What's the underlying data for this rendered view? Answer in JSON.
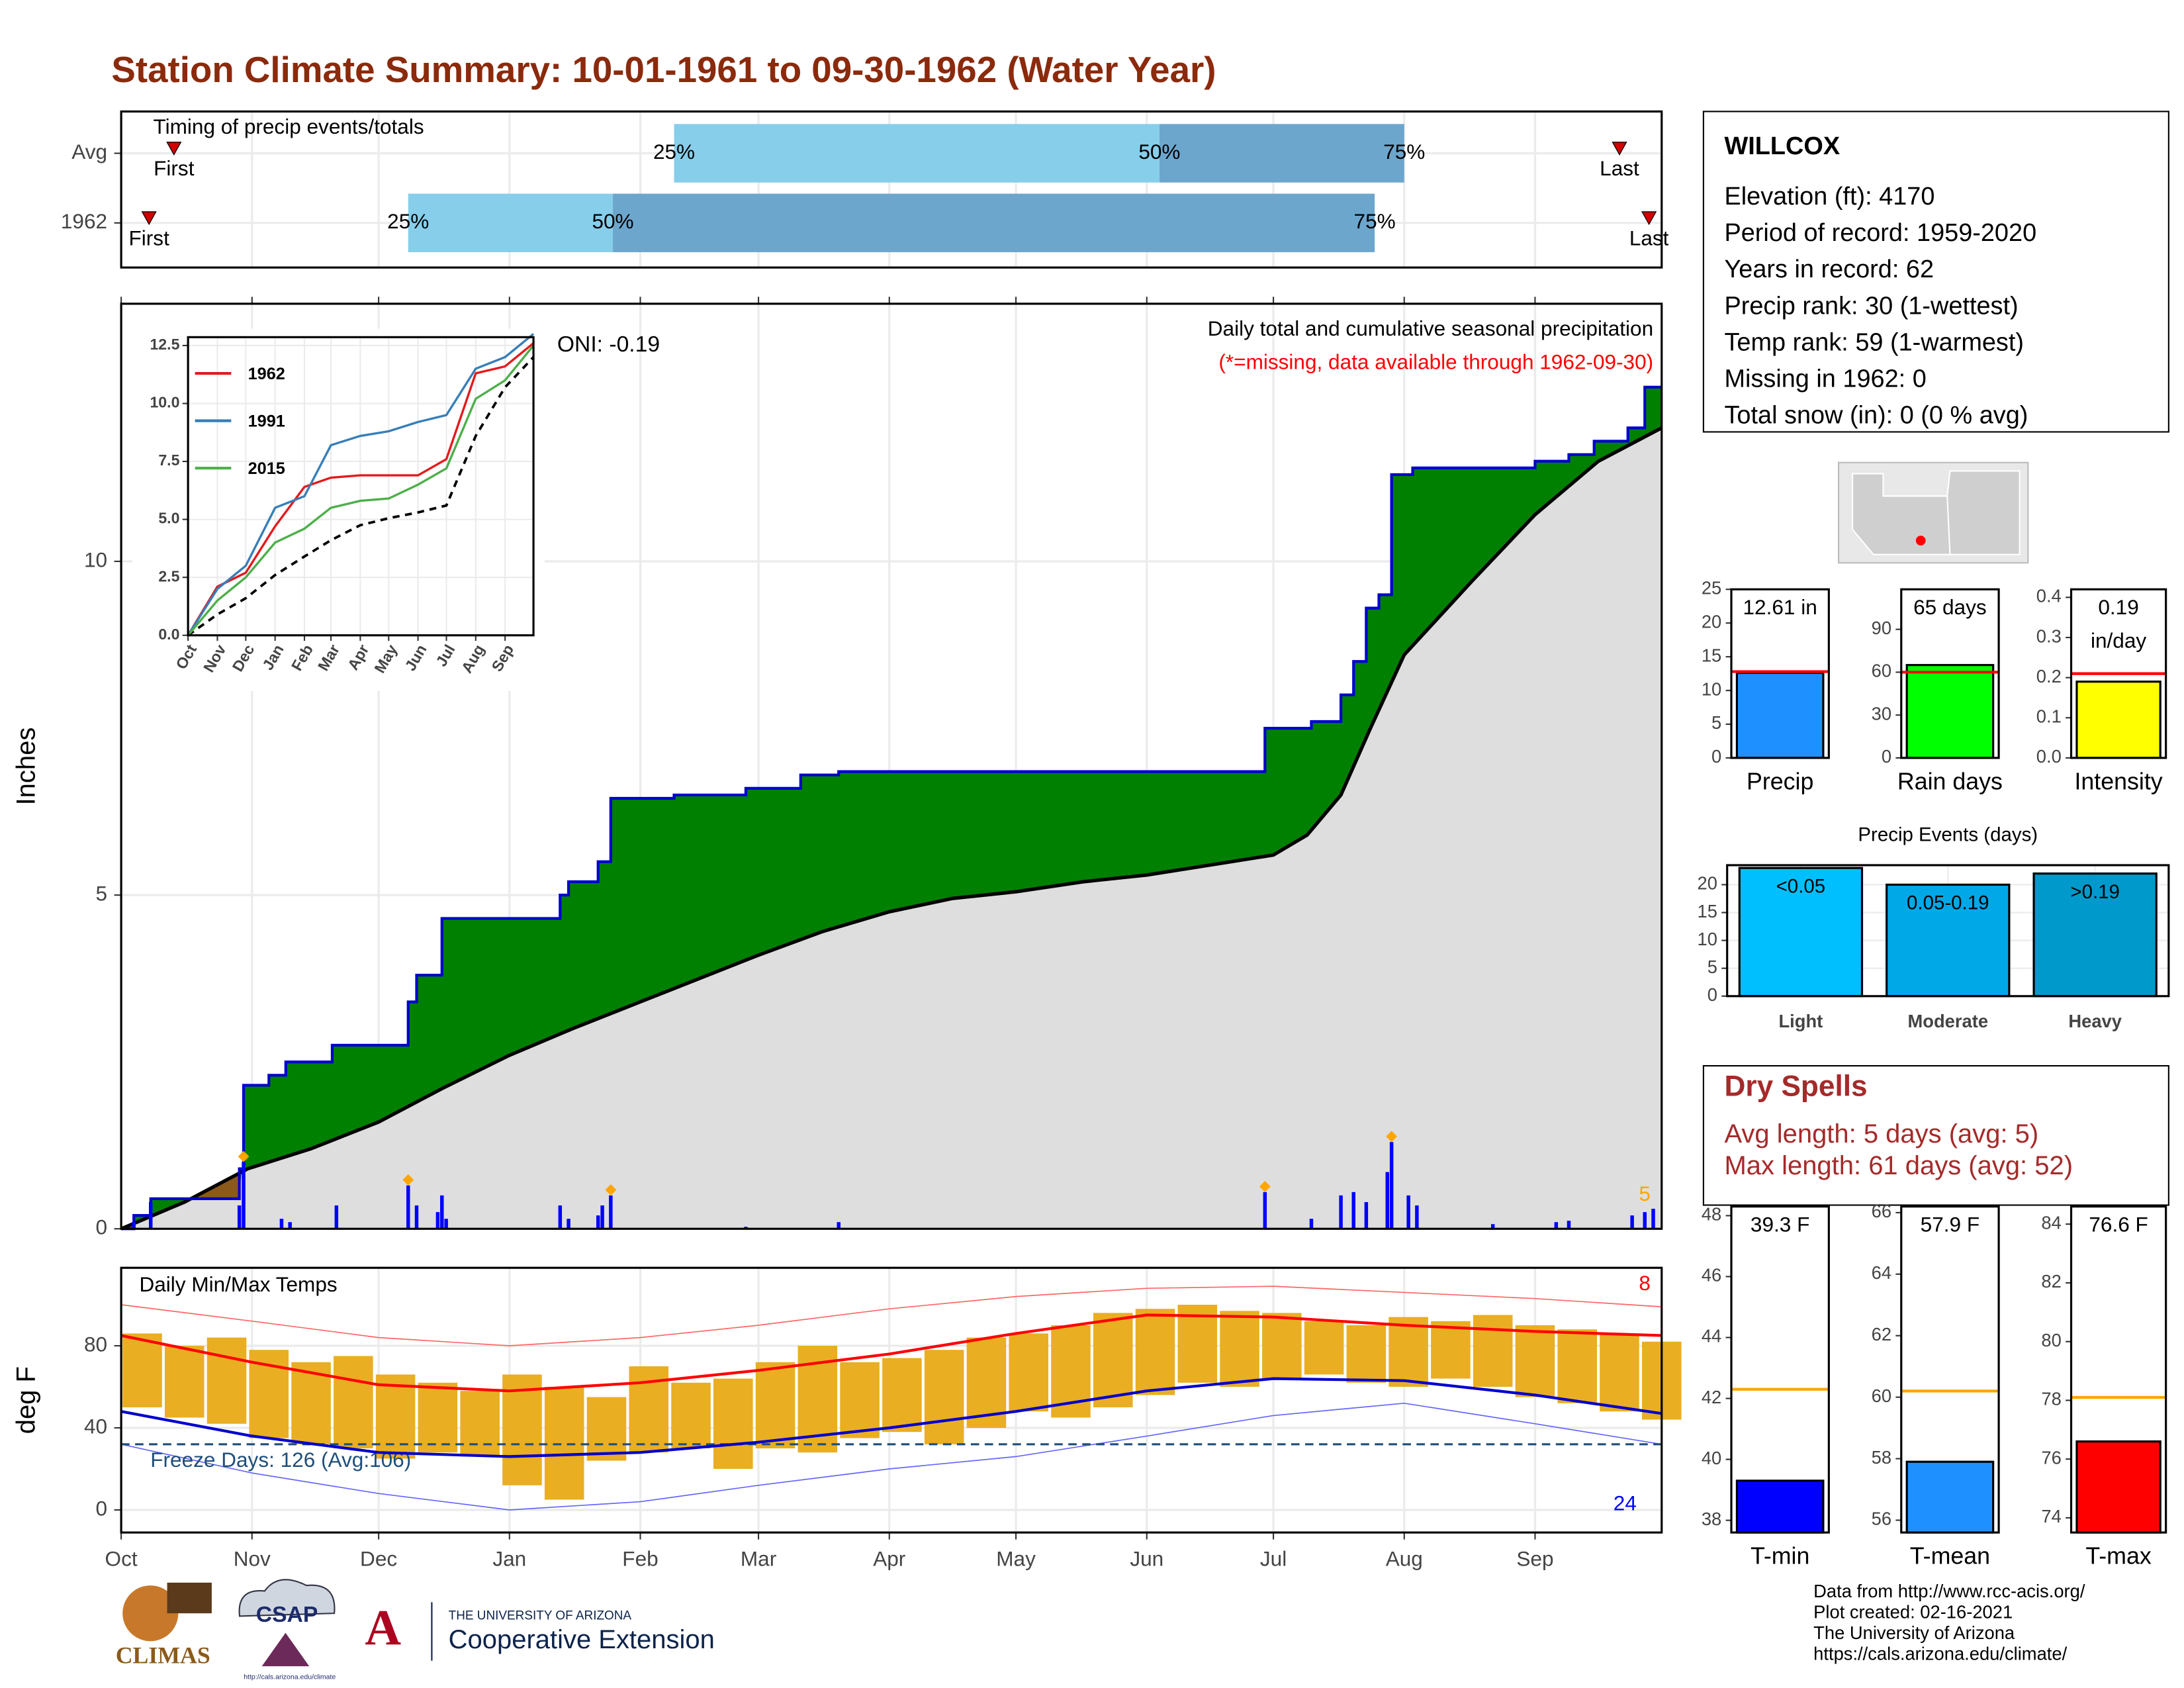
{
  "title": "Station Climate Summary: 10-01-1961 to 09-30-1962 (Water Year)",
  "chart_data": [
    {
      "type": "timing",
      "title": "Timing of precip events/totals",
      "categories": [
        "Avg",
        "1962"
      ],
      "xlim": [
        0,
        365
      ],
      "xticks": [
        0,
        31,
        61,
        92,
        123,
        151,
        182,
        212,
        243,
        273,
        304,
        335
      ],
      "markers": [
        {
          "label": "First",
          "values": [
            12.5,
            6.6
          ]
        },
        {
          "label": "Last",
          "values": [
            355,
            362
          ]
        }
      ],
      "quantiles": [
        {
          "label": "25%",
          "values": [
            131,
            68
          ]
        },
        {
          "label": "50%",
          "values": [
            246,
            116.5
          ]
        },
        {
          "label": "75%",
          "values": [
            304,
            297
          ]
        }
      ],
      "colors": [
        "#87ceeb",
        "#6ca6cd"
      ],
      "marker_color": "#d40000"
    },
    {
      "type": "cumulative",
      "y_label": "Inches",
      "oni": "ONI: -0.19",
      "subtitle": "Daily total and cumulative seasonal precipitation",
      "note": "(*=missing, data available through 1962-09-30)",
      "extreme_count": 5,
      "xlim": [
        0,
        365
      ],
      "ylim": [
        0,
        13.86
      ],
      "xticks": [
        0,
        31,
        61,
        92,
        123,
        151,
        182,
        212,
        243,
        273,
        304,
        335
      ],
      "yticks": [
        0,
        5,
        10
      ],
      "observed": {
        "color": "#0000cd",
        "fill": "#008000",
        "x": [
          0,
          3,
          3,
          7,
          7,
          28,
          28,
          29,
          29,
          35,
          35,
          39,
          39,
          50,
          50,
          68,
          68,
          70,
          70,
          76,
          76,
          104,
          104,
          106,
          106,
          113,
          113,
          116,
          116,
          131,
          131,
          148,
          148,
          161,
          161,
          170,
          170,
          271,
          271,
          282,
          282,
          289,
          289,
          292,
          292,
          295,
          295,
          298,
          298,
          301,
          301,
          306,
          306,
          335,
          335,
          343,
          343,
          349,
          349,
          357,
          357,
          361,
          361,
          365
        ],
        "values": [
          0,
          0,
          0.2,
          0.2,
          0.45,
          0.45,
          0.9,
          0.9,
          2.15,
          2.15,
          2.3,
          2.3,
          2.5,
          2.5,
          2.75,
          2.75,
          3.4,
          3.4,
          3.8,
          3.8,
          4.65,
          4.65,
          5.0,
          5.0,
          5.2,
          5.2,
          5.5,
          5.5,
          6.45,
          6.45,
          6.5,
          6.5,
          6.6,
          6.6,
          6.8,
          6.8,
          6.85,
          6.85,
          7.5,
          7.5,
          7.6,
          7.6,
          8.0,
          8.0,
          8.5,
          8.5,
          9.3,
          9.3,
          9.5,
          9.5,
          11.3,
          11.3,
          11.4,
          11.4,
          11.5,
          11.5,
          11.6,
          11.6,
          11.8,
          11.8,
          12.0,
          12.0,
          12.61,
          12.61
        ]
      },
      "average": {
        "color": "#000000",
        "fill": "#8b5a1a",
        "below_fill": "#dedede",
        "x": [
          0,
          15,
          30,
          45,
          61,
          76,
          92,
          107,
          123,
          137,
          151,
          166,
          182,
          197,
          212,
          228,
          243,
          258,
          273,
          281,
          289,
          296,
          304,
          320,
          335,
          350,
          365
        ],
        "values": [
          0,
          0.4,
          0.9,
          1.2,
          1.6,
          2.1,
          2.6,
          3.0,
          3.4,
          3.75,
          4.1,
          4.45,
          4.75,
          4.95,
          5.05,
          5.2,
          5.3,
          5.45,
          5.6,
          5.9,
          6.5,
          7.5,
          8.6,
          9.7,
          10.7,
          11.5,
          12.0
        ]
      },
      "daily": {
        "color": "#0000ff",
        "x": [
          3,
          7,
          28,
          29,
          38,
          40,
          51,
          68,
          70,
          75,
          76,
          77,
          104,
          106,
          113,
          114,
          116,
          148,
          170,
          271,
          282,
          289,
          292,
          295,
          300,
          301,
          305,
          307,
          325,
          340,
          343,
          358,
          361,
          363
        ],
        "values": [
          0.1,
          0.4,
          0.35,
          1.0,
          0.15,
          0.1,
          0.35,
          0.65,
          0.35,
          0.25,
          0.5,
          0.15,
          0.35,
          0.15,
          0.2,
          0.35,
          0.5,
          0.03,
          0.1,
          0.55,
          0.15,
          0.5,
          0.55,
          0.4,
          0.85,
          1.3,
          0.5,
          0.35,
          0.07,
          0.1,
          0.12,
          0.2,
          0.25,
          0.3
        ]
      },
      "extremes": {
        "color": "#ffa500",
        "x": [
          29,
          68,
          116,
          271,
          301
        ],
        "values": [
          1.0,
          0.65,
          0.5,
          0.55,
          1.3
        ]
      }
    },
    {
      "type": "line",
      "xlim": [
        0,
        365
      ],
      "ylim": [
        0,
        12.86
      ],
      "xticks": [
        {
          "value": 0,
          "label": "Oct"
        },
        {
          "value": 31,
          "label": "Nov"
        },
        {
          "value": 61,
          "label": "Dec"
        },
        {
          "value": 92,
          "label": "Jan"
        },
        {
          "value": 123,
          "label": "Feb"
        },
        {
          "value": 151,
          "label": "Mar"
        },
        {
          "value": 182,
          "label": "Apr"
        },
        {
          "value": 212,
          "label": "May"
        },
        {
          "value": 243,
          "label": "Jun"
        },
        {
          "value": 273,
          "label": "Jul"
        },
        {
          "value": 304,
          "label": "Aug"
        },
        {
          "value": 335,
          "label": "Sep"
        }
      ],
      "yticks": [
        {
          "value": 0,
          "label": "0.0"
        },
        {
          "value": 2.5,
          "label": "2.5"
        },
        {
          "value": 5,
          "label": "5.0"
        },
        {
          "value": 7.5,
          "label": "7.5"
        },
        {
          "value": 10,
          "label": "10.0"
        },
        {
          "value": 12.5,
          "label": "12.5"
        }
      ],
      "x": [
        0,
        31,
        61,
        92,
        123,
        151,
        182,
        212,
        243,
        273,
        304,
        335,
        365
      ],
      "series": [
        {
          "name": "1962",
          "color": "#e41a1c",
          "values": [
            0,
            2.1,
            2.7,
            4.7,
            6.4,
            6.8,
            6.9,
            6.9,
            6.9,
            7.6,
            11.3,
            11.6,
            12.6
          ]
        },
        {
          "name": "1991",
          "color": "#377eb8",
          "values": [
            0,
            2.0,
            3.0,
            5.5,
            6.0,
            8.2,
            8.6,
            8.8,
            9.2,
            9.5,
            11.5,
            12.0,
            13.0
          ]
        },
        {
          "name": "2015",
          "color": "#4daf4a",
          "values": [
            0,
            1.5,
            2.5,
            4.0,
            4.6,
            5.5,
            5.8,
            5.9,
            6.5,
            7.2,
            10.2,
            11.0,
            12.5
          ]
        }
      ],
      "average": {
        "color": "#000000",
        "values": [
          0,
          0.9,
          1.6,
          2.6,
          3.4,
          4.1,
          4.75,
          5.05,
          5.3,
          5.6,
          8.6,
          10.7,
          12.0
        ]
      }
    },
    {
      "type": "range-bar",
      "title": "Daily Min/Max Temps",
      "y_label": "deg F",
      "xlim": [
        0,
        365
      ],
      "ylim": [
        -11,
        118
      ],
      "xticks": [
        {
          "value": 0,
          "label": "Oct"
        },
        {
          "value": 31,
          "label": "Nov"
        },
        {
          "value": 61,
          "label": "Dec"
        },
        {
          "value": 92,
          "label": "Jan"
        },
        {
          "value": 123,
          "label": "Feb"
        },
        {
          "value": 151,
          "label": "Mar"
        },
        {
          "value": 182,
          "label": "Apr"
        },
        {
          "value": 212,
          "label": "May"
        },
        {
          "value": 243,
          "label": "Jun"
        },
        {
          "value": 273,
          "label": "Jul"
        },
        {
          "value": 304,
          "label": "Aug"
        },
        {
          "value": 335,
          "label": "Sep"
        }
      ],
      "yticks": [
        0,
        40,
        80
      ],
      "daily": {
        "color": "#e9ae22",
        "x": [
          0,
          10,
          20,
          30,
          40,
          50,
          60,
          70,
          80,
          90,
          100,
          110,
          120,
          130,
          140,
          150,
          160,
          170,
          180,
          190,
          200,
          210,
          220,
          230,
          240,
          250,
          260,
          270,
          280,
          290,
          300,
          310,
          320,
          330,
          340,
          350,
          360
        ],
        "max": [
          86,
          80,
          84,
          78,
          72,
          75,
          66,
          62,
          58,
          66,
          60,
          55,
          70,
          62,
          64,
          72,
          80,
          72,
          74,
          78,
          84,
          86,
          90,
          96,
          98,
          100,
          97,
          96,
          92,
          90,
          94,
          92,
          95,
          90,
          88,
          86,
          82
        ],
        "min": [
          50,
          45,
          42,
          35,
          32,
          30,
          25,
          28,
          26,
          12,
          5,
          24,
          28,
          30,
          20,
          30,
          28,
          35,
          38,
          32,
          40,
          48,
          45,
          50,
          56,
          62,
          60,
          64,
          66,
          62,
          60,
          64,
          60,
          55,
          52,
          48,
          44
        ]
      },
      "line_x": [
        0,
        31,
        61,
        92,
        123,
        151,
        182,
        212,
        243,
        273,
        304,
        335,
        365
      ],
      "avg_max": {
        "color": "#ff0000",
        "values": [
          85,
          72,
          61,
          58,
          62,
          68,
          76,
          86,
          95,
          94,
          90,
          87,
          85
        ]
      },
      "avg_min": {
        "color": "#0000cd",
        "values": [
          48,
          36,
          28,
          26,
          28,
          33,
          40,
          48,
          58,
          64,
          63,
          56,
          47
        ]
      },
      "record_high": {
        "color": "#ff6666",
        "values": [
          100,
          92,
          84,
          80,
          84,
          90,
          98,
          104,
          108,
          109,
          106,
          103,
          99
        ]
      },
      "record_low": {
        "color": "#6666ff",
        "values": [
          32,
          18,
          8,
          0,
          4,
          12,
          20,
          26,
          36,
          46,
          52,
          42,
          32
        ]
      },
      "freeze": {
        "value": 32,
        "label": "Freeze Days: 126 (Avg:106)",
        "color": "#1f4e79"
      },
      "record_high_count": 8,
      "record_low_count": 24
    },
    {
      "type": "bar",
      "categories": [
        "Precip"
      ],
      "values": [
        12.61
      ],
      "value_labels": [
        "12.61 in"
      ],
      "avg": 12.8,
      "avg_color": "#ff0000",
      "color": "#1e90ff",
      "ylim": [
        0,
        25
      ],
      "yticks": [
        0,
        5,
        10,
        15,
        20,
        25
      ]
    },
    {
      "type": "bar",
      "categories": [
        "Rain days"
      ],
      "values": [
        65
      ],
      "value_labels": [
        "65 days"
      ],
      "avg": 60,
      "avg_color": "#ff0000",
      "color": "#00ff00",
      "ylim": [
        0,
        118
      ],
      "yticks": [
        0,
        30,
        60,
        90
      ]
    },
    {
      "type": "bar",
      "categories": [
        "Intensity"
      ],
      "values": [
        0.19
      ],
      "value_labels": [
        "0.19 in/day"
      ],
      "avg": 0.21,
      "avg_color": "#ff0000",
      "color": "#ffff00",
      "ylim": [
        0,
        0.42
      ],
      "yticks": [
        {
          "value": 0,
          "label": "0.0"
        },
        {
          "value": 0.1,
          "label": "0.1"
        },
        {
          "value": 0.2,
          "label": "0.2"
        },
        {
          "value": 0.3,
          "label": "0.3"
        },
        {
          "value": 0.4,
          "label": "0.4"
        }
      ]
    },
    {
      "type": "events",
      "title": "Precip Events (days)",
      "categories": [
        "Light",
        "Moderate",
        "Heavy"
      ],
      "values": [
        23,
        20,
        22
      ],
      "bin_labels": [
        "<0.05",
        "0.05-0.19",
        ">0.19"
      ],
      "colors": [
        "#00bfff",
        "#00a8e8",
        "#0099cc"
      ],
      "ylim": [
        0,
        23.5
      ],
      "yticks": [
        0,
        5,
        10,
        15,
        20
      ],
      "grid": true
    },
    {
      "type": "bar",
      "categories": [
        "T-min"
      ],
      "values": [
        39.3
      ],
      "value_labels": [
        "39.3 F"
      ],
      "avg": 42.3,
      "avg_color": "#ffa500",
      "color": "#0000ff",
      "ylim": [
        37.6,
        48.3
      ],
      "yticks": [
        38,
        40,
        42,
        44,
        46,
        48
      ]
    },
    {
      "type": "bar",
      "categories": [
        "T-mean"
      ],
      "values": [
        57.9
      ],
      "value_labels": [
        "57.9 F"
      ],
      "avg": 60.2,
      "avg_color": "#ffa500",
      "color": "#1e90ff",
      "ylim": [
        55.6,
        66.2
      ],
      "yticks": [
        56,
        58,
        60,
        62,
        64,
        66
      ]
    },
    {
      "type": "bar",
      "categories": [
        "T-max"
      ],
      "values": [
        76.6
      ],
      "value_labels": [
        "76.6 F"
      ],
      "avg": 78.1,
      "avg_color": "#ffa500",
      "color": "#ff0000",
      "ylim": [
        73.5,
        84.6
      ],
      "yticks": [
        74,
        76,
        78,
        80,
        82,
        84
      ]
    }
  ],
  "station": {
    "name": "WILLCOX",
    "lines": [
      "Elevation (ft): 4170",
      "Period of record: 1959-2020",
      "Years in record: 62",
      "Precip rank: 30 (1-wettest)",
      "Temp rank: 59 (1-warmest)",
      "Missing in 1962: 0",
      "Total snow (in): 0 (0 % avg)"
    ]
  },
  "dry_spells": {
    "title": "Dry Spells",
    "lines": [
      "Avg length: 5 days (avg: 5)",
      "Max length: 61 days (avg: 52)"
    ]
  },
  "footer": {
    "lines": [
      "Data from http://www.rcc-acis.org/",
      "Plot created: 02-16-2021",
      "The University of Arizona",
      "https://cals.arizona.edu/climate/"
    ]
  },
  "logos": {
    "climas": "CLIMAS",
    "csap": "CSAP",
    "csap_url": "http://cals.arizona.edu/climate",
    "ua_small": "THE UNIVERSITY OF ARIZONA",
    "ua_large": "Cooperative Extension"
  }
}
